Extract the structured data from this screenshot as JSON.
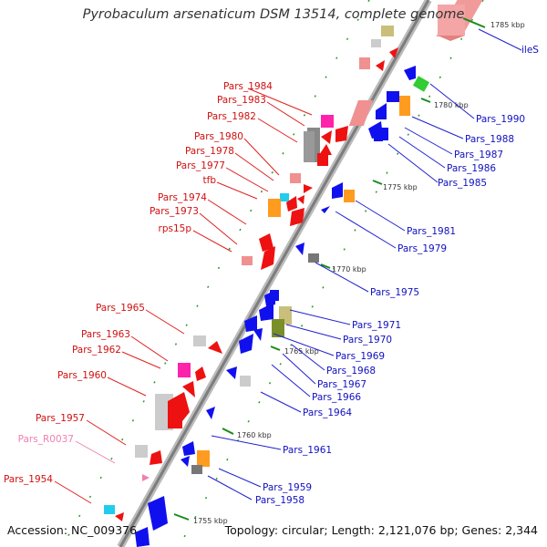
{
  "title": "Pyrobaculum arsenaticum DSM 13514, complete genome",
  "accession": "Accession: NC_009376",
  "topology": "Topology: circular; Length: 2,121,076 bp; Genes: 2,344",
  "colors": {
    "left_label": "#d01010",
    "right_label": "#1010c0",
    "rna_label": "#f080b0",
    "forward_gene": "#ee1111",
    "reverse_gene": "#1010ee",
    "backbone": "#999999",
    "tick": "#1a8a1a"
  },
  "ticks": [
    "1785 kbp",
    "1780 kbp",
    "1775 kbp",
    "1770 kbp",
    "1765 kbp",
    "1760 kbp",
    "1755 kbp"
  ],
  "left_labels": [
    "Pars_1984",
    "Pars_1983",
    "Pars_1982",
    "Pars_1980",
    "Pars_1978",
    "Pars_1977",
    "tfb",
    "Pars_1974",
    "Pars_1973",
    "rps15p",
    "Pars_1965",
    "Pars_1963",
    "Pars_1962",
    "Pars_1960",
    "Pars_1957",
    "Pars_R0037",
    "Pars_1954"
  ],
  "right_labels": [
    "ileS",
    "Pars_1990",
    "Pars_1988",
    "Pars_1987",
    "Pars_1986",
    "Pars_1985",
    "Pars_1981",
    "Pars_1979",
    "Pars_1975",
    "Pars_1971",
    "Pars_1970",
    "Pars_1969",
    "Pars_1968",
    "Pars_1967",
    "Pars_1966",
    "Pars_1964",
    "Pars_1961",
    "Pars_1959",
    "Pars_1958"
  ]
}
